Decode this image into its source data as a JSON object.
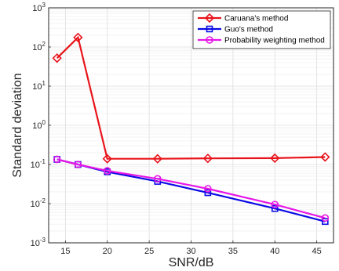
{
  "chart_data": {
    "type": "line",
    "title": "",
    "xlabel": "SNR/dB",
    "ylabel": "Standard deviation",
    "xlim": [
      13,
      47
    ],
    "ylim": [
      0.001,
      1000
    ],
    "yscale": "log",
    "grid": true,
    "legend_position": "top-right",
    "xticks": [
      "15",
      "20",
      "25",
      "30",
      "35",
      "40",
      "45"
    ],
    "xtick_values": [
      15,
      20,
      25,
      30,
      35,
      40,
      45
    ],
    "yticks": [
      {
        "base": "10",
        "exp": "-3",
        "value": 0.001
      },
      {
        "base": "10",
        "exp": "-2",
        "value": 0.01
      },
      {
        "base": "10",
        "exp": "-1",
        "value": 0.1
      },
      {
        "base": "10",
        "exp": "0",
        "value": 1
      },
      {
        "base": "10",
        "exp": "1",
        "value": 10
      },
      {
        "base": "10",
        "exp": "2",
        "value": 100
      },
      {
        "base": "10",
        "exp": "3",
        "value": 1000
      }
    ],
    "series": [
      {
        "name": "Caruana's method",
        "color": "#e8141b",
        "marker": "diamond",
        "x": [
          14,
          16.5,
          20,
          26,
          32,
          40,
          46
        ],
        "y": [
          52,
          175,
          0.14,
          0.14,
          0.143,
          0.145,
          0.155
        ]
      },
      {
        "name": "Guo's method",
        "color": "#0a0ae6",
        "marker": "square",
        "x": [
          14,
          16.5,
          20,
          26,
          32,
          40,
          46
        ],
        "y": [
          0.135,
          0.1,
          0.065,
          0.037,
          0.019,
          0.0075,
          0.0035
        ]
      },
      {
        "name": "Probability weighting method",
        "color": "#e617e6",
        "marker": "circle",
        "x": [
          14,
          16.5,
          20,
          26,
          32,
          40,
          46
        ],
        "y": [
          0.135,
          0.1,
          0.069,
          0.043,
          0.024,
          0.0095,
          0.0043
        ]
      }
    ]
  }
}
